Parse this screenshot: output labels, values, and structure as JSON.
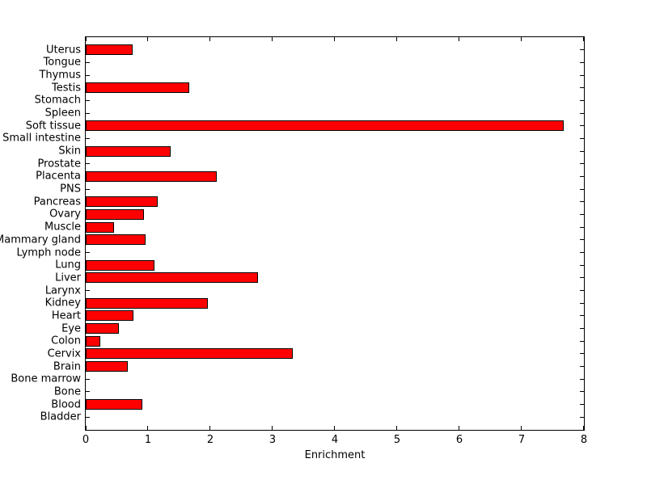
{
  "chart_data": {
    "type": "bar",
    "orientation": "horizontal",
    "title": "",
    "xlabel": "Enrichment",
    "ylabel": "",
    "xlim": [
      0,
      8
    ],
    "xticks": [
      "0",
      "1",
      "2",
      "3",
      "4",
      "5",
      "6",
      "7",
      "8"
    ],
    "xtick_values": [
      0,
      1,
      2,
      3,
      4,
      5,
      6,
      7,
      8
    ],
    "category_order": "top-to-bottom",
    "categories": [
      "Uterus",
      "Tongue",
      "Thymus",
      "Testis",
      "Stomach",
      "Spleen",
      "Soft tissue",
      "Small intestine",
      "Skin",
      "Prostate",
      "Placenta",
      "PNS",
      "Pancreas",
      "Ovary",
      "Muscle",
      "Mammary gland",
      "Lymph node",
      "Lung",
      "Liver",
      "Larynx",
      "Kidney",
      "Heart",
      "Eye",
      "Colon",
      "Cervix",
      "Brain",
      "Bone marrow",
      "Bone",
      "Blood",
      "Bladder"
    ],
    "values": [
      0.75,
      0,
      0,
      1.66,
      0,
      0,
      7.68,
      0,
      1.37,
      0,
      2.11,
      0,
      1.16,
      0.94,
      0.45,
      0.96,
      0,
      1.1,
      2.77,
      0,
      1.96,
      0.76,
      0.53,
      0.24,
      3.32,
      0.67,
      0,
      0,
      0.91,
      0
    ],
    "bar_color": "#FF0000",
    "bar_border_color": "#000000",
    "axis_color": "#000000",
    "background_color": "#FFFFFF",
    "grid": false,
    "legend": null,
    "tick_direction": "in",
    "box": true
  }
}
